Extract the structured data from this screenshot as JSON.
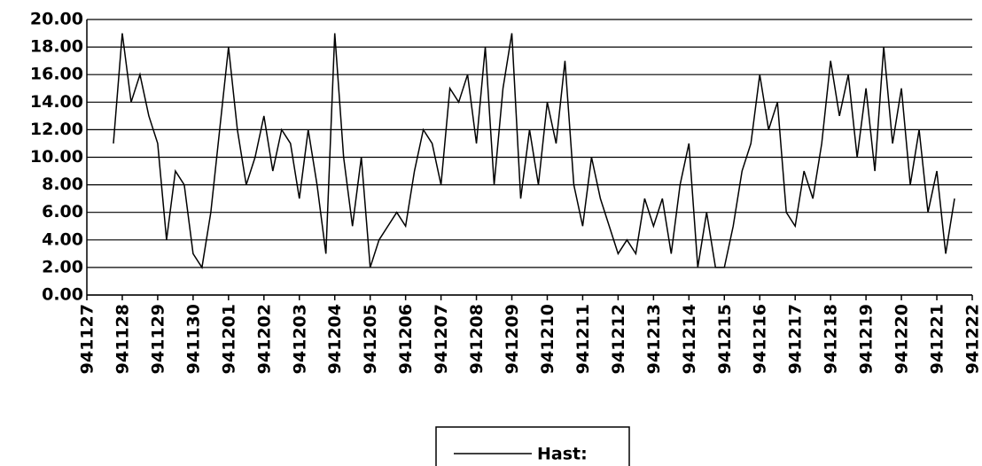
{
  "chart_data": {
    "type": "line",
    "categories": [
      "941127",
      null,
      null,
      null,
      "941128",
      null,
      null,
      null,
      "941129",
      null,
      null,
      null,
      "941130",
      null,
      null,
      null,
      "941201",
      null,
      null,
      null,
      "941202",
      null,
      null,
      null,
      "941203",
      null,
      null,
      null,
      "941204",
      null,
      null,
      null,
      "941205",
      null,
      null,
      null,
      "941206",
      null,
      null,
      null,
      "941207",
      null,
      null,
      null,
      "941208",
      null,
      null,
      null,
      "941209",
      null,
      null,
      null,
      "941210",
      null,
      null,
      null,
      "941211",
      null,
      null,
      null,
      "941212",
      null,
      null,
      null,
      "941213",
      null,
      null,
      null,
      "941214",
      null,
      null,
      null,
      "941215",
      null,
      null,
      null,
      "941216",
      null,
      null,
      null,
      "941217",
      null,
      null,
      null,
      "941218",
      null,
      null,
      null,
      "941219",
      null,
      null,
      null,
      "941220",
      null,
      null,
      null,
      "941221",
      null,
      null,
      null,
      "941222"
    ],
    "series": [
      {
        "name": "Hast:",
        "color": "#000000",
        "values": [
          null,
          null,
          null,
          11,
          19,
          14,
          16,
          13,
          11,
          4,
          9,
          8,
          3,
          2,
          6,
          12,
          18,
          12,
          8,
          10,
          13,
          9,
          12,
          11,
          7,
          12,
          8,
          3,
          19,
          10,
          5,
          10,
          2,
          4,
          5,
          6,
          5,
          9,
          12,
          11,
          8,
          15,
          14,
          16,
          11,
          18,
          8,
          15,
          19,
          7,
          12,
          8,
          14,
          11,
          17,
          8,
          5,
          10,
          7,
          5,
          3,
          4,
          3,
          7,
          5,
          7,
          3,
          8,
          11,
          2,
          6,
          2,
          2,
          5,
          9,
          11,
          16,
          12,
          14,
          6,
          5,
          9,
          7,
          11,
          17,
          13,
          16,
          10,
          15,
          9,
          18,
          11,
          15,
          8,
          12,
          6,
          9,
          3,
          7,
          null,
          null
        ]
      }
    ],
    "ylim": [
      0,
      20
    ],
    "yticks": [
      {
        "value": 0,
        "label": "0.00"
      },
      {
        "value": 2,
        "label": "2.00"
      },
      {
        "value": 4,
        "label": "4.00"
      },
      {
        "value": 6,
        "label": "6.00"
      },
      {
        "value": 8,
        "label": "8.00"
      },
      {
        "value": 10,
        "label": "10.00"
      },
      {
        "value": 12,
        "label": "12.00"
      },
      {
        "value": 14,
        "label": "14.00"
      },
      {
        "value": 16,
        "label": "16.00"
      },
      {
        "value": 18,
        "label": "18.00"
      },
      {
        "value": 20,
        "label": "20.00"
      }
    ],
    "grid": true
  }
}
